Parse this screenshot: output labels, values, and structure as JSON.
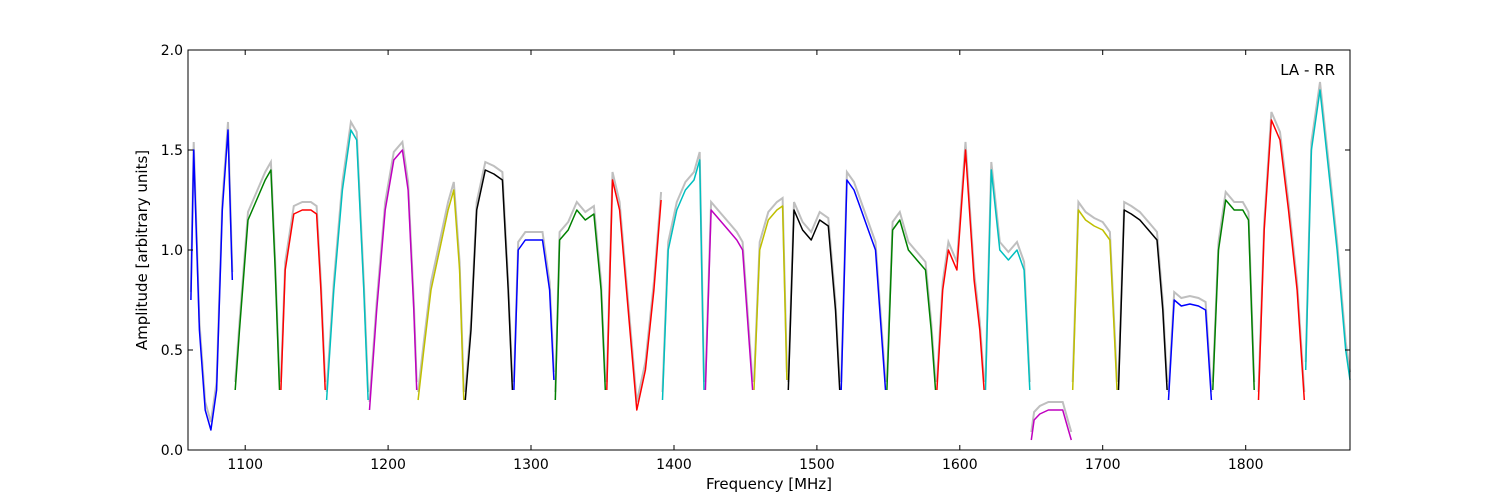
{
  "chart_data": {
    "type": "line",
    "title": "",
    "annotation": "LA - RR",
    "xlabel": "Frequency [MHz]",
    "ylabel": "Amplitude [arbitrary units]",
    "xlim": [
      1060,
      1873
    ],
    "ylim": [
      0.0,
      2.0
    ],
    "x_ticks": [
      1100,
      1200,
      1300,
      1400,
      1500,
      1600,
      1700,
      1800
    ],
    "y_ticks": [
      0.0,
      0.5,
      1.0,
      1.5,
      2.0
    ],
    "y_tick_labels": [
      "0.0",
      "0.5",
      "1.0",
      "1.5",
      "2.0"
    ],
    "grid": false,
    "background_trace_color": "#bfbfbf",
    "colors": {
      "b": "#0000ff",
      "g": "#008000",
      "r": "#ff0000",
      "c": "#00bfbf",
      "m": "#bf00bf",
      "y": "#bfbf00",
      "k": "#000000"
    },
    "series": [
      {
        "color": "b",
        "x": [
          1062,
          1064,
          1068,
          1072,
          1076,
          1080,
          1084,
          1088,
          1091
        ],
        "y": [
          0.75,
          1.5,
          0.6,
          0.2,
          0.1,
          0.3,
          1.2,
          1.6,
          0.85
        ]
      },
      {
        "color": "g",
        "x": [
          1093,
          1096,
          1102,
          1108,
          1114,
          1118,
          1121,
          1124
        ],
        "y": [
          0.3,
          0.6,
          1.15,
          1.25,
          1.35,
          1.4,
          0.9,
          0.3
        ]
      },
      {
        "color": "r",
        "x": [
          1125,
          1128,
          1134,
          1140,
          1146,
          1150,
          1153,
          1156
        ],
        "y": [
          0.3,
          0.9,
          1.18,
          1.2,
          1.2,
          1.18,
          0.8,
          0.3
        ]
      },
      {
        "color": "c",
        "x": [
          1157,
          1162,
          1168,
          1174,
          1178,
          1183,
          1186
        ],
        "y": [
          0.25,
          0.8,
          1.3,
          1.6,
          1.55,
          0.8,
          0.25
        ]
      },
      {
        "color": "m",
        "x": [
          1187,
          1192,
          1198,
          1204,
          1210,
          1214,
          1218,
          1220
        ],
        "y": [
          0.2,
          0.7,
          1.2,
          1.45,
          1.5,
          1.3,
          0.7,
          0.3
        ]
      },
      {
        "color": "y",
        "x": [
          1221,
          1225,
          1230,
          1236,
          1242,
          1246,
          1250,
          1253
        ],
        "y": [
          0.25,
          0.5,
          0.8,
          1.0,
          1.2,
          1.3,
          0.9,
          0.25
        ]
      },
      {
        "color": "k",
        "x": [
          1254,
          1258,
          1262,
          1268,
          1274,
          1280,
          1284,
          1287
        ],
        "y": [
          0.25,
          0.6,
          1.2,
          1.4,
          1.38,
          1.35,
          0.8,
          0.3
        ]
      },
      {
        "color": "b",
        "x": [
          1288,
          1291,
          1296,
          1302,
          1308,
          1313,
          1316
        ],
        "y": [
          0.3,
          1.0,
          1.05,
          1.05,
          1.05,
          0.8,
          0.35
        ]
      },
      {
        "color": "g",
        "x": [
          1317,
          1320,
          1326,
          1332,
          1338,
          1344,
          1349,
          1352
        ],
        "y": [
          0.25,
          1.05,
          1.1,
          1.2,
          1.15,
          1.18,
          0.8,
          0.3
        ]
      },
      {
        "color": "r",
        "x": [
          1353,
          1357,
          1362,
          1368,
          1374,
          1380,
          1386,
          1391
        ],
        "y": [
          0.3,
          1.35,
          1.2,
          0.7,
          0.2,
          0.4,
          0.8,
          1.25
        ]
      },
      {
        "color": "c",
        "x": [
          1392,
          1396,
          1402,
          1408,
          1414,
          1418,
          1421
        ],
        "y": [
          0.25,
          1.0,
          1.2,
          1.3,
          1.35,
          1.45,
          0.3
        ]
      },
      {
        "color": "m",
        "x": [
          1422,
          1426,
          1432,
          1438,
          1444,
          1448,
          1452,
          1455
        ],
        "y": [
          0.3,
          1.2,
          1.15,
          1.1,
          1.05,
          1.0,
          0.6,
          0.3
        ]
      },
      {
        "color": "y",
        "x": [
          1456,
          1460,
          1466,
          1472,
          1476,
          1479
        ],
        "y": [
          0.3,
          1.0,
          1.15,
          1.2,
          1.22,
          0.35
        ]
      },
      {
        "color": "k",
        "x": [
          1480,
          1484,
          1490,
          1496,
          1502,
          1508,
          1513,
          1516
        ],
        "y": [
          0.3,
          1.2,
          1.1,
          1.05,
          1.15,
          1.12,
          0.7,
          0.3
        ]
      },
      {
        "color": "b",
        "x": [
          1517,
          1521,
          1526,
          1531,
          1536,
          1541,
          1545,
          1548
        ],
        "y": [
          0.3,
          1.35,
          1.3,
          1.2,
          1.1,
          1.0,
          0.6,
          0.3
        ]
      },
      {
        "color": "g",
        "x": [
          1549,
          1553,
          1558,
          1564,
          1570,
          1576,
          1580,
          1583
        ],
        "y": [
          0.3,
          1.1,
          1.15,
          1.0,
          0.95,
          0.9,
          0.6,
          0.3
        ]
      },
      {
        "color": "r",
        "x": [
          1584,
          1588,
          1592,
          1598,
          1604,
          1610,
          1614,
          1617
        ],
        "y": [
          0.3,
          0.8,
          1.0,
          0.9,
          1.5,
          0.85,
          0.6,
          0.3
        ]
      },
      {
        "color": "c",
        "x": [
          1618,
          1622,
          1628,
          1634,
          1640,
          1645,
          1649
        ],
        "y": [
          0.3,
          1.4,
          1.0,
          0.95,
          1.0,
          0.9,
          0.3
        ]
      },
      {
        "color": "m",
        "x": [
          1650,
          1652,
          1656,
          1662,
          1668,
          1672,
          1676,
          1678
        ],
        "y": [
          0.05,
          0.15,
          0.18,
          0.2,
          0.2,
          0.2,
          0.1,
          0.05
        ]
      },
      {
        "color": "y",
        "x": [
          1679,
          1683,
          1688,
          1694,
          1700,
          1705,
          1710
        ],
        "y": [
          0.3,
          1.2,
          1.15,
          1.12,
          1.1,
          1.05,
          0.3
        ]
      },
      {
        "color": "k",
        "x": [
          1711,
          1715,
          1720,
          1726,
          1732,
          1738,
          1742,
          1745
        ],
        "y": [
          0.3,
          1.2,
          1.18,
          1.15,
          1.1,
          1.05,
          0.7,
          0.3
        ]
      },
      {
        "color": "b",
        "x": [
          1746,
          1750,
          1755,
          1761,
          1767,
          1772,
          1776
        ],
        "y": [
          0.25,
          0.75,
          0.72,
          0.73,
          0.72,
          0.7,
          0.25
        ]
      },
      {
        "color": "g",
        "x": [
          1777,
          1781,
          1786,
          1792,
          1798,
          1802,
          1806
        ],
        "y": [
          0.3,
          1.0,
          1.25,
          1.2,
          1.2,
          1.15,
          0.3
        ]
      },
      {
        "color": "r",
        "x": [
          1809,
          1813,
          1818,
          1824,
          1830,
          1836,
          1841
        ],
        "y": [
          0.25,
          1.1,
          1.65,
          1.55,
          1.2,
          0.8,
          0.25
        ]
      },
      {
        "color": "c",
        "x": [
          1842,
          1846,
          1852,
          1858,
          1864,
          1870,
          1873
        ],
        "y": [
          0.4,
          1.5,
          1.8,
          1.4,
          1.0,
          0.5,
          0.35
        ]
      }
    ]
  }
}
